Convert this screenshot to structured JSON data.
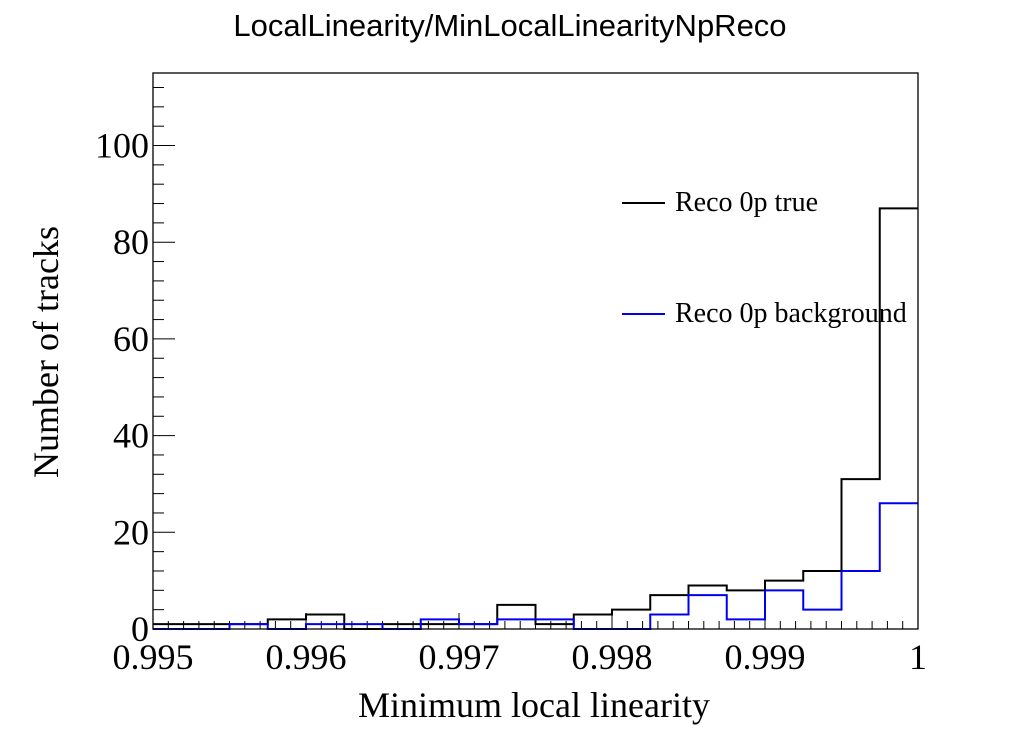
{
  "chart_data": {
    "type": "histogram",
    "title": "LocalLinearity/MinLocalLinearityNpReco",
    "xlabel": "Minimum local linearity",
    "ylabel": "Number of tracks",
    "xlim": [
      0.995,
      1.0
    ],
    "ylim": [
      0,
      115
    ],
    "x_ticks": [
      0.995,
      0.996,
      0.997,
      0.998,
      0.999,
      1.0
    ],
    "x_tick_labels": [
      "0.995",
      "0.996",
      "0.997",
      "0.998",
      "0.999",
      "1"
    ],
    "y_ticks": [
      0,
      20,
      40,
      60,
      80,
      100
    ],
    "y_tick_labels": [
      "0",
      "20",
      "40",
      "60",
      "80",
      "100"
    ],
    "bin_edges": [
      0.995,
      0.99525,
      0.9955,
      0.99575,
      0.996,
      0.99625,
      0.9965,
      0.99675,
      0.997,
      0.99725,
      0.9975,
      0.99775,
      0.998,
      0.99825,
      0.9985,
      0.99875,
      0.999,
      0.99925,
      0.9995,
      0.99975,
      1.0
    ],
    "series": [
      {
        "name": "Reco 0p true",
        "color": "#000000",
        "values": [
          1,
          1,
          1,
          2,
          3,
          0,
          1,
          1,
          1,
          5,
          1,
          3,
          4,
          7,
          9,
          8,
          10,
          12,
          31,
          87
        ]
      },
      {
        "name": "Reco 0p background",
        "color": "#0000ee",
        "values": [
          0,
          0,
          1,
          0,
          1,
          1,
          0,
          2,
          1,
          2,
          2,
          0,
          0,
          3,
          7,
          2,
          8,
          4,
          12,
          26
        ]
      }
    ],
    "legend_position": "top-right",
    "grid": false
  }
}
